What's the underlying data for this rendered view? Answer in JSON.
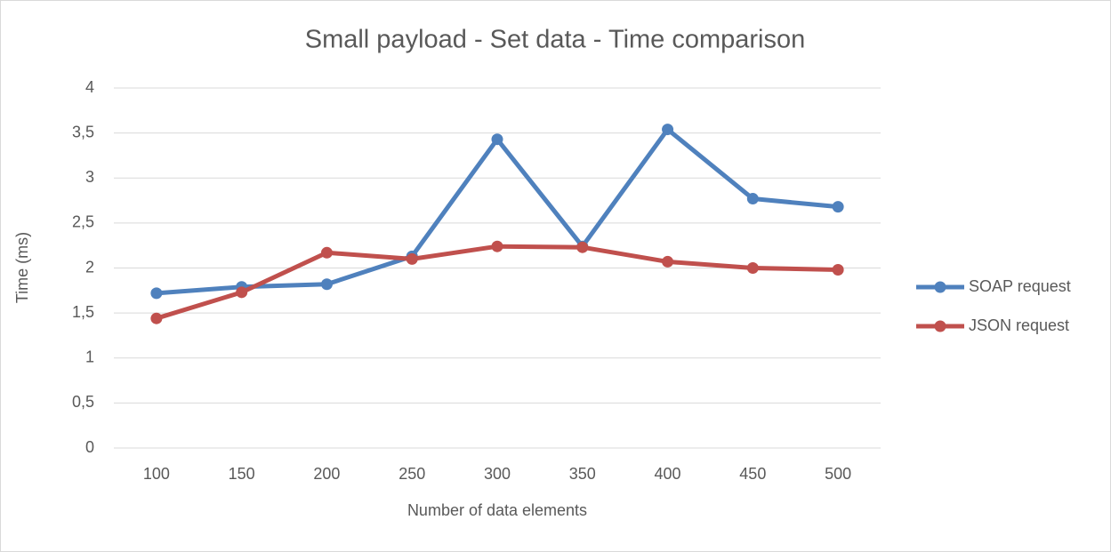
{
  "chart_data": {
    "type": "line",
    "title": "Small payload - Set data - Time comparison",
    "x_label": "Number of data elements",
    "y_label": "Time (ms)",
    "categories": [
      "100",
      "150",
      "200",
      "250",
      "300",
      "350",
      "400",
      "450",
      "500"
    ],
    "series": [
      {
        "name": "SOAP request",
        "color": "#4f81bd",
        "values": [
          1.72,
          1.79,
          1.82,
          2.13,
          3.43,
          2.24,
          3.54,
          2.77,
          2.68
        ]
      },
      {
        "name": "JSON request",
        "color": "#c0504d",
        "values": [
          1.44,
          1.73,
          2.17,
          2.1,
          2.24,
          2.23,
          2.07,
          2.0,
          1.98
        ]
      }
    ],
    "ylim": [
      0,
      4
    ],
    "yticks": [
      0,
      {
        "value": 0.5,
        "label": "0,5"
      },
      1,
      {
        "value": 1.5,
        "label": "1,5"
      },
      2,
      {
        "value": 2.5,
        "label": "2,5"
      },
      3,
      {
        "value": 3.5,
        "label": "3,5"
      },
      4
    ],
    "grid": true,
    "legend": "right"
  }
}
